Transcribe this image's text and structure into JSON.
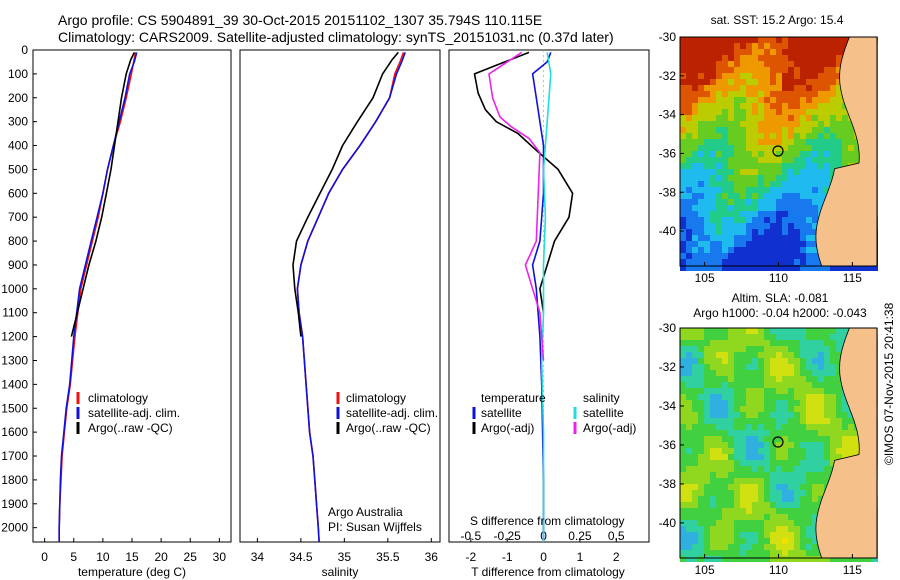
{
  "header": {
    "line1": "Argo profile: CS 5904891_39 30-Oct-2015 20151102_1307 35.794S 110.115E",
    "line2": "Climatology: CARS2009. Satellite-adjusted climatology: synTS_20151031.nc (0.37d later)"
  },
  "colors": {
    "climatology": "#ee1111",
    "satellite": "#1111dd",
    "argo": "#000000",
    "sal_satellite": "#22dddd",
    "sal_argo": "#ee22ee"
  },
  "depth_axis": {
    "ylim": [
      2060,
      0
    ],
    "ticks": [
      0,
      100,
      200,
      300,
      400,
      500,
      600,
      700,
      800,
      900,
      1000,
      1100,
      1200,
      1300,
      1400,
      1500,
      1600,
      1700,
      1800,
      1900,
      2000
    ]
  },
  "chart_data": [
    {
      "id": "temperature",
      "type": "line",
      "xlabel": "temperature (deg C)",
      "ylabel": "",
      "xlim": [
        -2,
        32
      ],
      "ylim": [
        2060,
        0
      ],
      "xticks": [
        0,
        5,
        10,
        15,
        20,
        25,
        30
      ],
      "legend": {
        "position": "lower-left",
        "entries": [
          "climatology",
          "satellite-adj. clim.",
          "Argo(..raw -QC)"
        ]
      },
      "series": [
        {
          "name": "climatology",
          "color": "#ee1111",
          "x": [
            15.6,
            15.3,
            14.9,
            14.0,
            13.0,
            11.8,
            10.8,
            10.0,
            9.2,
            8.2,
            7.2,
            6.2,
            5.2,
            4.4,
            3.8,
            3.4,
            3.0,
            2.8,
            2.6,
            2.5,
            2.5
          ],
          "y": [
            10,
            50,
            100,
            200,
            300,
            400,
            500,
            600,
            700,
            800,
            900,
            1000,
            1200,
            1400,
            1500,
            1600,
            1700,
            1800,
            1900,
            2000,
            2060
          ]
        },
        {
          "name": "satellite-adj. clim.",
          "color": "#1111dd",
          "x": [
            15.8,
            15.4,
            14.6,
            13.8,
            12.8,
            11.8,
            10.8,
            10.0,
            9.0,
            8.0,
            7.0,
            6.0,
            5.0,
            4.3,
            3.7,
            3.3,
            2.9,
            2.7,
            2.6,
            2.5,
            2.5
          ],
          "y": [
            10,
            50,
            100,
            200,
            300,
            400,
            500,
            600,
            700,
            800,
            900,
            1000,
            1200,
            1400,
            1500,
            1600,
            1700,
            1800,
            1900,
            2000,
            2060
          ]
        },
        {
          "name": "Argo(..raw -QC)",
          "color": "#000000",
          "x": [
            15.4,
            14.8,
            14.0,
            13.2,
            12.6,
            12.0,
            11.4,
            10.6,
            9.8,
            8.8,
            7.6,
            6.6,
            5.6,
            4.6
          ],
          "y": [
            10,
            40,
            100,
            200,
            300,
            400,
            500,
            600,
            700,
            800,
            900,
            1000,
            1100,
            1200
          ]
        }
      ]
    },
    {
      "id": "salinity",
      "type": "line",
      "xlabel": "salinity",
      "ylabel": "",
      "xlim": [
        33.8,
        36.1
      ],
      "ylim": [
        2060,
        0
      ],
      "xticks": [
        34,
        34.5,
        35,
        35.5,
        36
      ],
      "legend": {
        "position": "lower-left",
        "entries": [
          "climatology",
          "satellite-adj. clim.",
          "Argo(..raw -QC)"
        ]
      },
      "annotation": [
        "Argo Australia",
        "PI: Susan Wijffels"
      ],
      "series": [
        {
          "name": "climatology",
          "color": "#ee1111",
          "x": [
            35.68,
            35.64,
            35.58,
            35.52,
            35.36,
            35.18,
            34.98,
            34.82,
            34.7,
            34.58,
            34.5,
            34.46,
            34.48,
            34.52,
            34.56,
            34.6,
            34.64,
            34.66,
            34.68,
            34.7,
            34.71
          ],
          "y": [
            10,
            50,
            100,
            200,
            300,
            400,
            500,
            600,
            700,
            800,
            900,
            1000,
            1100,
            1200,
            1400,
            1600,
            1700,
            1800,
            1900,
            2000,
            2060
          ]
        },
        {
          "name": "satellite-adj. clim.",
          "color": "#1111dd",
          "x": [
            35.7,
            35.66,
            35.6,
            35.52,
            35.36,
            35.18,
            34.98,
            34.82,
            34.7,
            34.58,
            34.5,
            34.46,
            34.48,
            34.52,
            34.56,
            34.6,
            34.64,
            34.66,
            34.68,
            34.7,
            34.71
          ],
          "y": [
            10,
            50,
            100,
            200,
            300,
            400,
            500,
            600,
            700,
            800,
            900,
            1000,
            1100,
            1200,
            1400,
            1600,
            1700,
            1800,
            1900,
            2000,
            2060
          ]
        },
        {
          "name": "Argo(..raw -QC)",
          "color": "#000000",
          "x": [
            35.62,
            35.55,
            35.44,
            35.33,
            35.15,
            34.98,
            34.86,
            34.72,
            34.58,
            34.45,
            34.41,
            34.43,
            34.47,
            34.5
          ],
          "y": [
            10,
            40,
            100,
            200,
            300,
            400,
            500,
            600,
            700,
            800,
            900,
            1000,
            1100,
            1200
          ]
        }
      ]
    },
    {
      "id": "differences",
      "type": "line",
      "xlabel": "T difference from climatology",
      "xlabel2": "S difference from climatology",
      "ylabel": "",
      "xlim": [
        -2.6,
        2.9
      ],
      "ylim": [
        2060,
        0
      ],
      "xticks": [
        -2,
        -1,
        0,
        1,
        2
      ],
      "xticks2": [
        "-0.5",
        "-0.25",
        "0",
        "0.25",
        "0.5"
      ],
      "legend_left": {
        "title": "temperature",
        "entries": [
          "satellite",
          "Argo(-adj)"
        ]
      },
      "legend_right": {
        "title": "salinity",
        "entries": [
          "satellite",
          "Argo(-adj)"
        ]
      },
      "series": [
        {
          "name": "satellite",
          "group": "temperature",
          "color": "#1111dd",
          "x": [
            0.2,
            0.1,
            -0.3,
            -0.2,
            -0.1,
            0.0,
            0.0,
            -0.1,
            -0.3,
            -0.2,
            -0.1,
            -0.05,
            0.0,
            0.0
          ],
          "y": [
            10,
            50,
            100,
            200,
            300,
            400,
            600,
            800,
            900,
            1000,
            1200,
            1400,
            1800,
            2060
          ]
        },
        {
          "name": "Argo(-adj)",
          "group": "temperature",
          "color": "#000000",
          "x": [
            -0.4,
            -1.9,
            -1.8,
            -1.6,
            -1.3,
            -0.7,
            -0.2,
            0.4,
            0.8,
            0.7,
            0.3,
            0.1,
            -0.1,
            0.0
          ],
          "y": [
            10,
            100,
            180,
            250,
            300,
            350,
            420,
            500,
            600,
            700,
            800,
            900,
            1000,
            1100
          ]
        },
        {
          "name": "satellite",
          "group": "salinity",
          "color": "#22dddd",
          "x": [
            0.1,
            0.2,
            0.15,
            0.1,
            0.05,
            0.0,
            0.05,
            0.0,
            0.0,
            -0.05,
            0.0,
            0.0
          ],
          "y": [
            10,
            100,
            200,
            300,
            400,
            500,
            700,
            900,
            1100,
            1300,
            1600,
            2060
          ]
        },
        {
          "name": "Argo(-adj)",
          "group": "salinity",
          "color": "#ee22ee",
          "x": [
            -0.6,
            -1.5,
            -1.4,
            -1.2,
            -0.9,
            -0.4,
            -0.1,
            -0.2,
            -0.5,
            -0.3,
            -0.1,
            -0.05,
            0.0
          ],
          "y": [
            10,
            100,
            200,
            280,
            320,
            370,
            430,
            800,
            900,
            1000,
            1100,
            1200,
            1300
          ]
        }
      ]
    }
  ],
  "maps": [
    {
      "id": "sst-map",
      "title": "sat. SST: 15.2  Argo: 15.4",
      "title2": "",
      "lon_ticks": [
        "105",
        "110",
        "115"
      ],
      "lat_ticks": [
        "-30",
        "-32",
        "-34",
        "-36",
        "-38",
        "-40"
      ],
      "palette": [
        "#1030d0",
        "#1878ee",
        "#20bbee",
        "#22cc88",
        "#66cc22",
        "#bbcc00",
        "#ee9900",
        "#dd5500",
        "#bb2200"
      ],
      "land_color": "#f5c08a",
      "profile_lon": 110.1,
      "profile_lat": -35.8
    },
    {
      "id": "sla-map",
      "title": "Altim. SLA: -0.081",
      "title2": "Argo h1000: -0.04 h2000: -0.043",
      "lon_ticks": [
        "105",
        "110",
        "115"
      ],
      "lat_ticks": [
        "-30",
        "-32",
        "-34",
        "-36",
        "-38",
        "-40"
      ],
      "palette": [
        "#3070e0",
        "#30b0e0",
        "#30d0a0",
        "#40d040",
        "#90d820",
        "#d0e010",
        "#f0e000",
        "#f0a000"
      ],
      "land_color": "#f5c08a",
      "profile_lon": 110.1,
      "profile_lat": -35.8
    }
  ],
  "credit": "©IMOS 07-Nov-2015 20:41:38"
}
